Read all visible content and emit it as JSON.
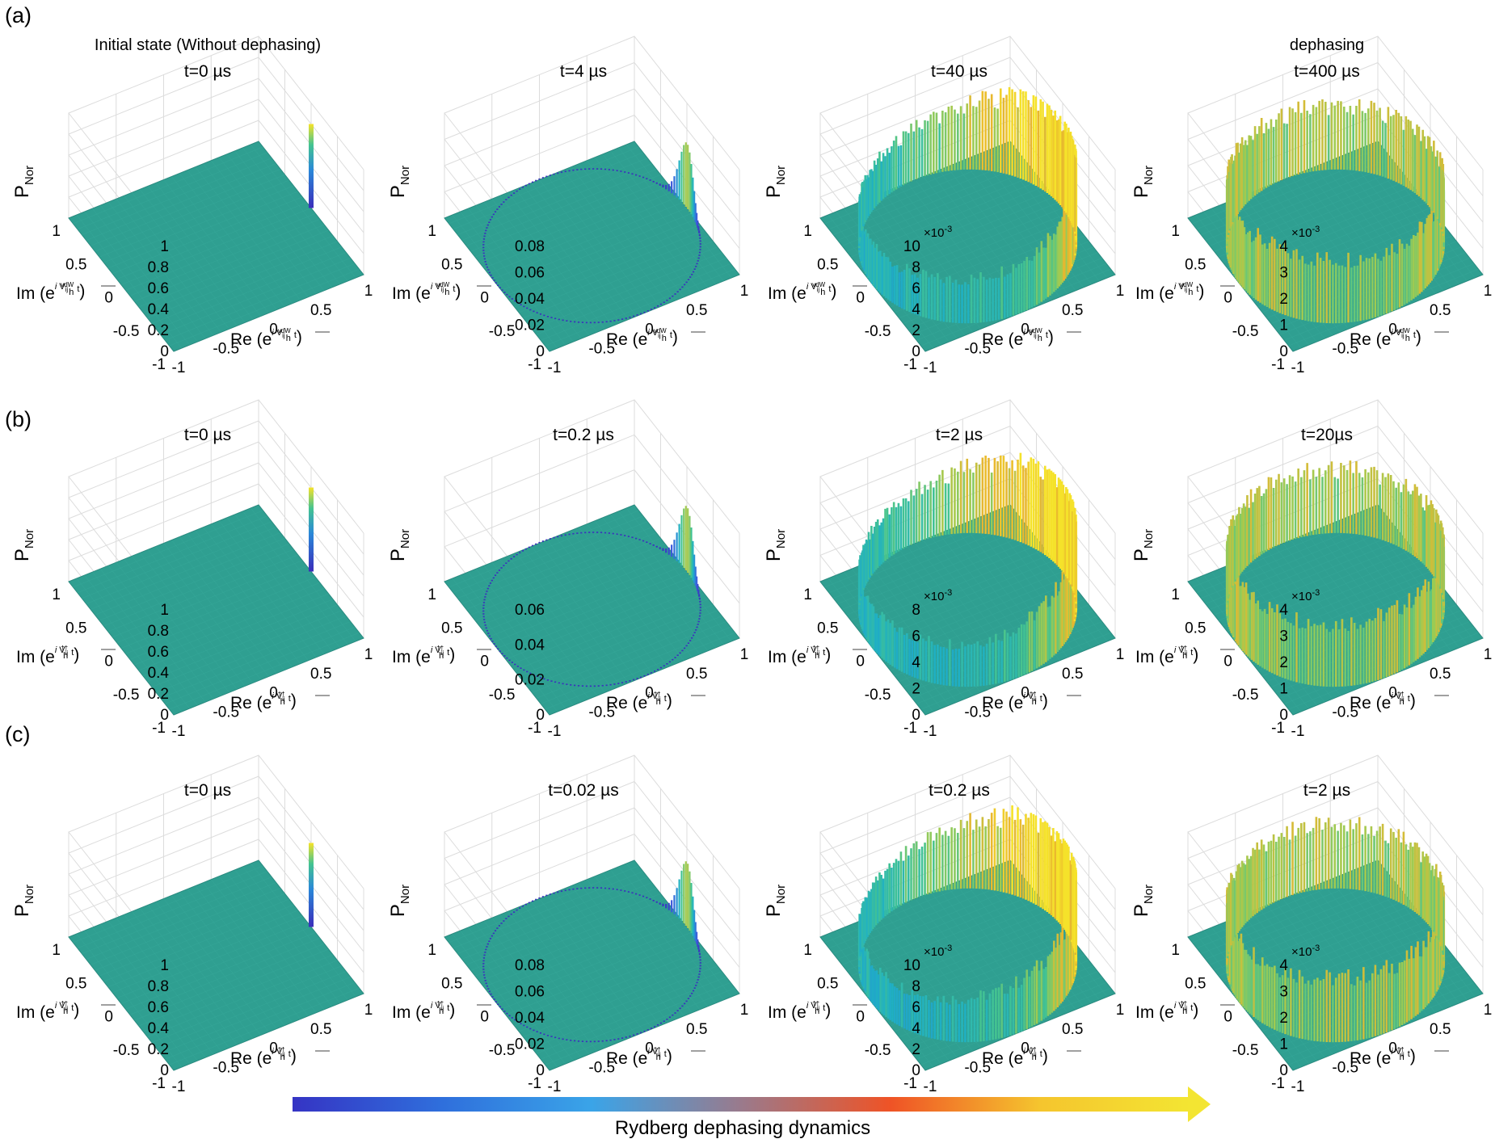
{
  "figure": {
    "rows": [
      {
        "label": "(a)",
        "coupling": "vdW",
        "panels": [
          {
            "title": "t=0 µs",
            "header": "Initial state (Without dephasing)",
            "zticks": [
              "0",
              "0.2",
              "0.4",
              "0.6",
              "0.8",
              "1"
            ],
            "zmax": 1,
            "exponent": "",
            "state": "initial"
          },
          {
            "title": "t=4 µs",
            "header": "",
            "zticks": [
              "0",
              "0.02",
              "0.04",
              "0.06",
              "0.08"
            ],
            "zmax": 0.08,
            "exponent": "",
            "state": "early"
          },
          {
            "title": "t=40 µs",
            "header": "",
            "zticks": [
              "0",
              "2",
              "4",
              "6",
              "8",
              "10"
            ],
            "zmax": 10,
            "exponent": "×10-3",
            "state": "mid"
          },
          {
            "title": "t=400 µs",
            "header": "dephasing",
            "zticks": [
              "0",
              "1",
              "2",
              "3",
              "4"
            ],
            "zmax": 4,
            "exponent": "×10-3",
            "state": "dephased"
          }
        ]
      },
      {
        "label": "(b)",
        "coupling": "††",
        "panels": [
          {
            "title": "t=0 µs",
            "header": "",
            "zticks": [
              "0",
              "0.2",
              "0.4",
              "0.6",
              "0.8",
              "1"
            ],
            "zmax": 1,
            "exponent": "",
            "state": "initial"
          },
          {
            "title": "t=0.2 µs",
            "header": "",
            "zticks": [
              "0",
              "0.02",
              "0.04",
              "0.06"
            ],
            "zmax": 0.06,
            "exponent": "",
            "state": "early"
          },
          {
            "title": "t=2 µs",
            "header": "",
            "zticks": [
              "0",
              "2",
              "4",
              "6",
              "8"
            ],
            "zmax": 8,
            "exponent": "×10-3",
            "state": "mid"
          },
          {
            "title": "t=20µs",
            "header": "",
            "zticks": [
              "0",
              "1",
              "2",
              "3",
              "4"
            ],
            "zmax": 4,
            "exponent": "×10-3",
            "state": "dephased"
          }
        ]
      },
      {
        "label": "(c)",
        "coupling": "††",
        "panels": [
          {
            "title": "t=0 µs",
            "header": "",
            "zticks": [
              "0",
              "0.2",
              "0.4",
              "0.6",
              "0.8",
              "1"
            ],
            "zmax": 1,
            "exponent": "",
            "state": "initial"
          },
          {
            "title": "t=0.02 µs",
            "header": "",
            "zticks": [
              "0",
              "0.02",
              "0.04",
              "0.06",
              "0.08"
            ],
            "zmax": 0.08,
            "exponent": "",
            "state": "early"
          },
          {
            "title": "t=0.2 µs",
            "header": "",
            "zticks": [
              "0",
              "2",
              "4",
              "6",
              "8",
              "10"
            ],
            "zmax": 10,
            "exponent": "×10-3",
            "state": "mid"
          },
          {
            "title": "t=2 µs",
            "header": "",
            "zticks": [
              "0",
              "1",
              "2",
              "3",
              "4"
            ],
            "zmax": 4,
            "exponent": "×10-3",
            "state": "dephased"
          }
        ]
      }
    ],
    "xy_ticks": [
      "-1",
      "-0.5",
      "0",
      "0.5",
      "1"
    ],
    "zlabel_main": "P",
    "zlabel_sub": "Nor",
    "xlabel_prefix": "Re (e",
    "ylabel_prefix": "Im (e",
    "exp_i": "i",
    "exp_V": "V",
    "exp_ij": "ij",
    "exp_h": "h",
    "exp_t": "t",
    "label_close": ")",
    "arrow_label": "Rydberg dephasing dynamics",
    "arrow_gradient": [
      "#3534c4",
      "#2f6fdc",
      "#3aa4e8",
      "#9a7a8c",
      "#ef5326",
      "#f5c52e",
      "#f3e532"
    ],
    "surface_color": "#2f9f91",
    "colormap": [
      "#3a2dba",
      "#3b5bdc",
      "#2a88d8",
      "#1fb0c4",
      "#44c391",
      "#9ecb52",
      "#e9b62e",
      "#f5e22a"
    ]
  },
  "chart_data": [
    {
      "type": "bar3d",
      "row": "(a)",
      "title": "t=0 µs",
      "xlabel": "Re (e^{i V_ij^vdW t / h})",
      "ylabel": "Im (e^{i V_ij^vdW t / h})",
      "zlabel": "P_Nor",
      "xlim": [
        -1,
        1
      ],
      "ylim": [
        -1,
        1
      ],
      "zlim": [
        0,
        1
      ],
      "distribution": "single peak at phase 0 (Re=1, Im=0)",
      "peak": 1
    },
    {
      "type": "bar3d",
      "row": "(a)",
      "title": "t=4 µs",
      "xlabel": "Re (e^{i V_ij^vdW t / h})",
      "ylabel": "Im (e^{i V_ij^vdW t / h})",
      "zlabel": "P_Nor",
      "xlim": [
        -1,
        1
      ],
      "ylim": [
        -1,
        1
      ],
      "zlim": [
        0,
        0.08
      ],
      "distribution": "peak near phase 0 with thin tail along unit circle",
      "peak": 0.063
    },
    {
      "type": "bar3d",
      "row": "(a)",
      "title": "t=40 µs",
      "xlabel": "Re (e^{i V_ij^vdW t / h})",
      "ylabel": "Im (e^{i V_ij^vdW t / h})",
      "zlabel": "P_Nor",
      "zscale": "×10^-3",
      "xlim": [
        -1,
        1
      ],
      "ylim": [
        -1,
        1
      ],
      "zlim": [
        0,
        10
      ],
      "distribution": "ring on unit circle, heavier near phase 0",
      "peak": 9.5
    },
    {
      "type": "bar3d",
      "row": "(a)",
      "title": "t=400 µs",
      "xlabel": "Re (e^{i V_ij^vdW t / h})",
      "ylabel": "Im (e^{i V_ij^vdW t / h})",
      "zlabel": "P_Nor",
      "zscale": "×10^-3",
      "xlim": [
        -1,
        1
      ],
      "ylim": [
        -1,
        1
      ],
      "zlim": [
        0,
        4
      ],
      "distribution": "uniform ring on unit circle",
      "peak": 3.4
    },
    {
      "type": "bar3d",
      "row": "(b)",
      "title": "t=0 µs",
      "xlabel": "Re (e^{i V_ij^†† t / h})",
      "ylabel": "Im (e^{i V_ij^†† t / h})",
      "zlabel": "P_Nor",
      "xlim": [
        -1,
        1
      ],
      "ylim": [
        -1,
        1
      ],
      "zlim": [
        0,
        1
      ],
      "distribution": "single peak at phase 0",
      "peak": 0.95
    },
    {
      "type": "bar3d",
      "row": "(b)",
      "title": "t=0.2 µs",
      "xlabel": "Re (e^{i V_ij^†† t / h})",
      "ylabel": "Im (e^{i V_ij^†† t / h})",
      "zlabel": "P_Nor",
      "xlim": [
        -1,
        1
      ],
      "ylim": [
        -1,
        1
      ],
      "zlim": [
        0,
        0.06
      ],
      "distribution": "peak near phase 0 with thin tail along unit circle",
      "peak": 0.045
    },
    {
      "type": "bar3d",
      "row": "(b)",
      "title": "t=2 µs",
      "xlabel": "Re (e^{i V_ij^†† t / h})",
      "ylabel": "Im (e^{i V_ij^†† t / h})",
      "zlabel": "P_Nor",
      "zscale": "×10^-3",
      "xlim": [
        -1,
        1
      ],
      "ylim": [
        -1,
        1
      ],
      "zlim": [
        0,
        8
      ],
      "distribution": "ring on unit circle",
      "peak": 7.5
    },
    {
      "type": "bar3d",
      "row": "(b)",
      "title": "t=20µs",
      "xlabel": "Re (e^{i V_ij^†† t / h})",
      "ylabel": "Im (e^{i V_ij^†† t / h})",
      "zlabel": "P_Nor",
      "zscale": "×10^-3",
      "xlim": [
        -1,
        1
      ],
      "ylim": [
        -1,
        1
      ],
      "zlim": [
        0,
        4
      ],
      "distribution": "uniform ring on unit circle",
      "peak": 3.5
    },
    {
      "type": "bar3d",
      "row": "(c)",
      "title": "t=0 µs",
      "xlabel": "Re (e^{i V_ij^†† t / h})",
      "ylabel": "Im (e^{i V_ij^†† t / h})",
      "zlabel": "P_Nor",
      "xlim": [
        -1,
        1
      ],
      "ylim": [
        -1,
        1
      ],
      "zlim": [
        0,
        1
      ],
      "distribution": "single peak at phase 0",
      "peak": 0.97
    },
    {
      "type": "bar3d",
      "row": "(c)",
      "title": "t=0.02 µs",
      "xlabel": "Re (e^{i V_ij^†† t / h})",
      "ylabel": "Im (e^{i V_ij^†† t / h})",
      "zlabel": "P_Nor",
      "xlim": [
        -1,
        1
      ],
      "ylim": [
        -1,
        1
      ],
      "zlim": [
        0,
        0.08
      ],
      "distribution": "peak near phase 0 with thin tail along unit circle",
      "peak": 0.065
    },
    {
      "type": "bar3d",
      "row": "(c)",
      "title": "t=0.2 µs",
      "xlabel": "Re (e^{i V_ij^†† t / h})",
      "ylabel": "Im (e^{i V_ij^†† t / h})",
      "zlabel": "P_Nor",
      "zscale": "×10^-3",
      "xlim": [
        -1,
        1
      ],
      "ylim": [
        -1,
        1
      ],
      "zlim": [
        0,
        10
      ],
      "distribution": "ring on unit circle, heavier near phase 0",
      "peak": 9.5
    },
    {
      "type": "bar3d",
      "row": "(c)",
      "title": "t=2 µs",
      "xlabel": "Re (e^{i V_ij^†† t / h})",
      "ylabel": "Im (e^{i V_ij^†† t / h})",
      "zlabel": "P_Nor",
      "zscale": "×10^-3",
      "xlim": [
        -1,
        1
      ],
      "ylim": [
        -1,
        1
      ],
      "zlim": [
        0,
        4
      ],
      "distribution": "uniform ring on unit circle",
      "peak": 3.3
    }
  ]
}
